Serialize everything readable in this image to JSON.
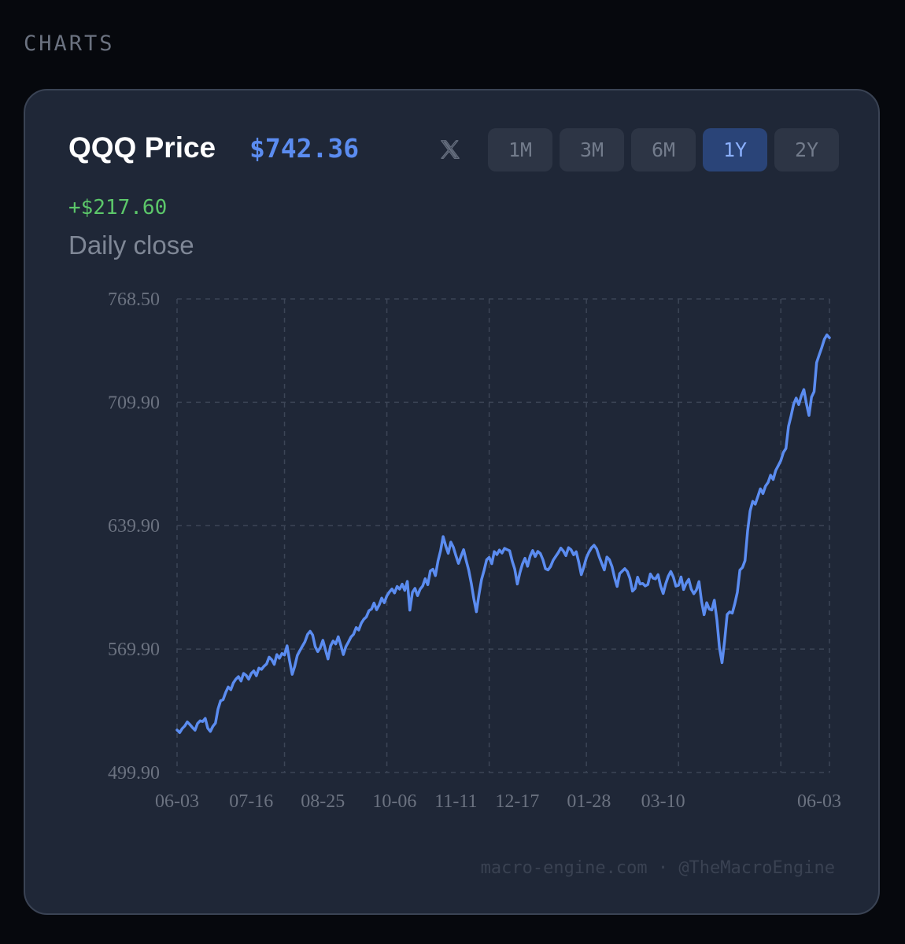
{
  "section": {
    "label": "CHARTS"
  },
  "card": {
    "title": "QQQ Price",
    "price": "$742.36",
    "change": "+$217.60",
    "subtitle": "Daily close",
    "share_icon": "x-logo-icon",
    "ranges": [
      {
        "label": "1M",
        "active": false
      },
      {
        "label": "3M",
        "active": false
      },
      {
        "label": "6M",
        "active": false
      },
      {
        "label": "1Y",
        "active": true
      },
      {
        "label": "2Y",
        "active": false
      }
    ],
    "footer": "macro-engine.com · @TheMacroEngine"
  },
  "colors": {
    "line": "#5b8cf0",
    "positive": "#5cc76a",
    "grid": "#3c4556",
    "tick": "#6b7280"
  },
  "chart_data": {
    "type": "line",
    "title": "QQQ Price",
    "subtitle": "Daily close",
    "xlabel": "",
    "ylabel": "",
    "grid": true,
    "ylim": [
      499.9,
      768.5
    ],
    "y_ticks": [
      "768.50",
      "709.90",
      "639.90",
      "569.90",
      "499.90"
    ],
    "y_tick_values": [
      768.5,
      709.9,
      639.9,
      569.9,
      499.9
    ],
    "x_ticks": [
      "06-03",
      "07-16",
      "08-25",
      "10-06",
      "11-11",
      "12-17",
      "01-28",
      "03-10",
      "06-03"
    ],
    "x_tick_positions": [
      0,
      29,
      57,
      85,
      109,
      133,
      161,
      190,
      251
    ],
    "series": [
      {
        "name": "",
        "values": [
          524.0,
          522.5,
          524.8,
          526.3,
          528.6,
          527.1,
          525.4,
          523.9,
          527.7,
          529.2,
          528.8,
          530.6,
          525.0,
          523.2,
          526.1,
          527.9,
          535.8,
          540.6,
          541.2,
          545.3,
          548.4,
          546.9,
          550.7,
          552.9,
          554.3,
          551.8,
          556.1,
          555.0,
          552.8,
          556.1,
          557.5,
          554.8,
          559.1,
          558.4,
          560.2,
          561.5,
          565.3,
          563.9,
          561.2,
          566.8,
          564.7,
          567.4,
          566.5,
          571.8,
          563.2,
          555.6,
          560.1,
          566.3,
          569.0,
          571.6,
          574.1,
          578.2,
          580.0,
          577.9,
          571.2,
          568.5,
          570.8,
          574.9,
          569.4,
          564.3,
          571.7,
          574.5,
          572.8,
          576.9,
          572.1,
          566.8,
          571.4,
          573.9,
          576.8,
          578.3,
          582.1,
          580.7,
          584.6,
          586.8,
          588.2,
          591.7,
          592.6,
          596.0,
          592.2,
          594.9,
          598.8,
          596.2,
          600.1,
          602.3,
          604.0,
          601.7,
          605.4,
          603.9,
          606.7,
          603.2,
          608.3,
          592.0,
          602.1,
          604.3,
          600.2,
          603.8,
          605.7,
          609.8,
          606.4,
          614.2,
          615.2,
          611.6,
          619.9,
          625.8,
          633.7,
          628.4,
          624.2,
          630.6,
          627.7,
          622.8,
          618.5,
          622.6,
          626.3,
          620.1,
          614.7,
          607.1,
          598.4,
          591.1,
          600.8,
          609.4,
          614.5,
          620.6,
          621.9,
          618.3,
          625.2,
          623.5,
          626.1,
          624.4,
          627.0,
          626.3,
          625.7,
          619.8,
          615.3,
          606.8,
          613.1,
          618.2,
          621.4,
          616.9,
          622.6,
          625.8,
          622.4,
          625.3,
          624.1,
          620.6,
          615.5,
          614.8,
          616.7,
          620.3,
          622.4,
          624.6,
          627.2,
          625.5,
          622.9,
          627.4,
          626.2,
          623.4,
          625.1,
          619.3,
          612.1,
          616.5,
          621.8,
          624.9,
          627.4,
          628.8,
          626.7,
          622.3,
          618.5,
          614.8,
          622.1,
          620.6,
          616.7,
          610.5,
          605.4,
          612.7,
          614.1,
          615.5,
          613.9,
          610.0,
          602.8,
          604.2,
          610.7,
          606.8,
          607.1,
          605.7,
          606.5,
          612.5,
          610.2,
          609.7,
          612.1,
          605.8,
          601.4,
          606.9,
          611.2,
          613.9,
          610.7,
          605.6,
          606.1,
          610.8,
          603.7,
          607.2,
          609.5,
          603.9,
          601.3,
          603.4,
          608.2,
          596.9,
          589.4,
          596.2,
          592.6,
          592.1,
          597.6,
          586.4,
          570.8,
          562.2,
          574.2,
          589.5,
          591.0,
          590.3,
          595.6,
          602.2,
          614.7,
          616.2,
          620.1,
          636.9,
          648.3,
          653.7,
          652.1,
          656.4,
          660.8,
          658.1,
          662.3,
          664.4,
          668.5,
          666.1,
          671.2,
          674.0,
          676.8,
          681.5,
          683.7,
          696.3,
          702.1,
          708.8,
          712.3,
          708.6,
          713.4,
          717.1,
          709.2,
          702.4,
          712.8,
          715.9,
          732.4,
          736.8,
          740.9,
          745.6,
          748.1,
          746.5
        ]
      }
    ]
  }
}
